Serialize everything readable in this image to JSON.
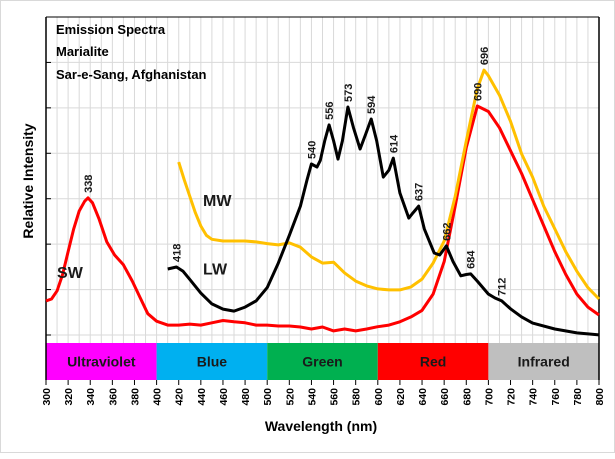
{
  "chart_data": {
    "type": "line",
    "title_lines": [
      "Emission Spectra",
      "Marialite",
      "Sar-e-Sang, Afghanistan"
    ],
    "xlabel": "Wavelength (nm)",
    "ylabel": "Relative Intensity",
    "xlim": [
      300,
      800
    ],
    "ylim": [
      0,
      100
    ],
    "x_ticks": [
      300,
      320,
      340,
      360,
      380,
      400,
      420,
      440,
      460,
      480,
      500,
      520,
      540,
      560,
      580,
      600,
      620,
      640,
      660,
      680,
      700,
      720,
      740,
      760,
      780,
      800
    ],
    "y_tick_count": 8,
    "y_tick_labels_shown": false,
    "grid": true,
    "legend": "inline-labels",
    "bands": [
      {
        "label": "Ultraviolet",
        "from": 300,
        "to": 400,
        "color": "#ff00ff"
      },
      {
        "label": "Blue",
        "from": 400,
        "to": 500,
        "color": "#00b0f0"
      },
      {
        "label": "Green",
        "from": 500,
        "to": 600,
        "color": "#00b050"
      },
      {
        "label": "Red",
        "from": 600,
        "to": 700,
        "color": "#ff0000"
      },
      {
        "label": "Infrared",
        "from": 700,
        "to": 800,
        "color": "#bfbfbf"
      }
    ],
    "series": [
      {
        "name": "SW",
        "color": "#ff0000",
        "label_at": [
          310,
          20
        ],
        "x": [
          300,
          305,
          310,
          315,
          320,
          325,
          330,
          335,
          338,
          342,
          348,
          355,
          362,
          370,
          378,
          385,
          392,
          400,
          410,
          420,
          430,
          440,
          450,
          460,
          470,
          480,
          490,
          500,
          510,
          520,
          530,
          540,
          550,
          560,
          570,
          580,
          590,
          600,
          610,
          620,
          630,
          640,
          650,
          660,
          670,
          680,
          690,
          700,
          710,
          720,
          730,
          740,
          750,
          760,
          770,
          780,
          790,
          800
        ],
        "values": [
          12.9,
          13.5,
          16,
          21,
          28,
          35,
          40.5,
          43.5,
          44.5,
          43,
          38,
          31,
          27,
          24,
          19,
          14,
          9,
          6.7,
          5.5,
          5.5,
          5.8,
          5.5,
          6.2,
          6.9,
          6.5,
          6.2,
          5.5,
          5.5,
          5.2,
          5.2,
          4.9,
          4.3,
          4.9,
          3.7,
          4.3,
          3.7,
          4.3,
          5,
          5.5,
          6.5,
          8,
          10,
          15,
          25,
          42,
          60,
          72.7,
          71,
          66,
          59,
          52,
          44,
          36,
          28,
          21,
          15,
          11,
          8.6
        ]
      },
      {
        "name": "MW",
        "color": "#ffc000",
        "label_at": [
          442,
          42
        ],
        "x": [
          420,
          425,
          430,
          435,
          440,
          445,
          450,
          460,
          470,
          480,
          490,
          500,
          510,
          520,
          530,
          540,
          550,
          560,
          570,
          580,
          590,
          600,
          610,
          620,
          630,
          640,
          650,
          660,
          670,
          680,
          690,
          696,
          700,
          710,
          720,
          730,
          740,
          750,
          760,
          770,
          780,
          790,
          800
        ],
        "values": [
          55.5,
          50,
          45,
          40,
          35.9,
          33,
          31.8,
          31.3,
          31.3,
          31.3,
          31,
          30.5,
          30.1,
          30.7,
          29.4,
          26.4,
          24.5,
          24.8,
          21.5,
          19,
          17.5,
          16.6,
          16.3,
          16.3,
          17.2,
          19.6,
          24.5,
          31.3,
          45,
          62,
          78,
          83.7,
          82,
          76,
          68,
          58,
          50.9,
          42,
          35,
          28,
          22,
          17,
          13.5
        ]
      },
      {
        "name": "LW",
        "color": "#000000",
        "label_at": [
          442,
          21
        ],
        "x": [
          410,
          414,
          418,
          424,
          430,
          440,
          450,
          460,
          470,
          480,
          490,
          500,
          510,
          520,
          530,
          536,
          540,
          545,
          548,
          552,
          556,
          560,
          564,
          568,
          573,
          578,
          584,
          589,
          594,
          599,
          605,
          610,
          614,
          620,
          628,
          632,
          637,
          642,
          651,
          656,
          662,
          668,
          675,
          680,
          684,
          690,
          700,
          706,
          712,
          720,
          730,
          740,
          760,
          780,
          800
        ],
        "values": [
          22.7,
          23,
          23.3,
          22,
          19.5,
          15.3,
          12,
          10.4,
          9.8,
          11,
          12.9,
          17,
          24.5,
          33,
          42,
          50,
          54.9,
          54,
          56,
          62,
          66.9,
          62,
          56.4,
          62,
          72.4,
          66,
          59.5,
          64,
          68.7,
          62,
          50.9,
          53,
          56.7,
          46,
          38.3,
          40,
          42,
          35,
          27.6,
          27,
          29.8,
          25,
          20.6,
          21,
          21.2,
          19,
          15,
          13.8,
          12.9,
          10.5,
          8,
          6.1,
          4.3,
          3.1,
          2.5
        ]
      }
    ],
    "annotations": [
      {
        "text": "338",
        "series": "SW",
        "x": 338
      },
      {
        "text": "690",
        "series": "SW",
        "x": 690
      },
      {
        "text": "696",
        "series": "MW",
        "x": 696
      },
      {
        "text": "418",
        "series": "LW",
        "x": 418
      },
      {
        "text": "540",
        "series": "LW",
        "x": 540
      },
      {
        "text": "556",
        "series": "LW",
        "x": 556
      },
      {
        "text": "573",
        "series": "LW",
        "x": 573
      },
      {
        "text": "594",
        "series": "LW",
        "x": 594
      },
      {
        "text": "614",
        "series": "LW",
        "x": 614
      },
      {
        "text": "637",
        "series": "LW",
        "x": 637
      },
      {
        "text": "662",
        "series": "LW",
        "x": 662
      },
      {
        "text": "684",
        "series": "LW",
        "x": 684
      },
      {
        "text": "712",
        "series": "LW",
        "x": 712
      }
    ]
  }
}
